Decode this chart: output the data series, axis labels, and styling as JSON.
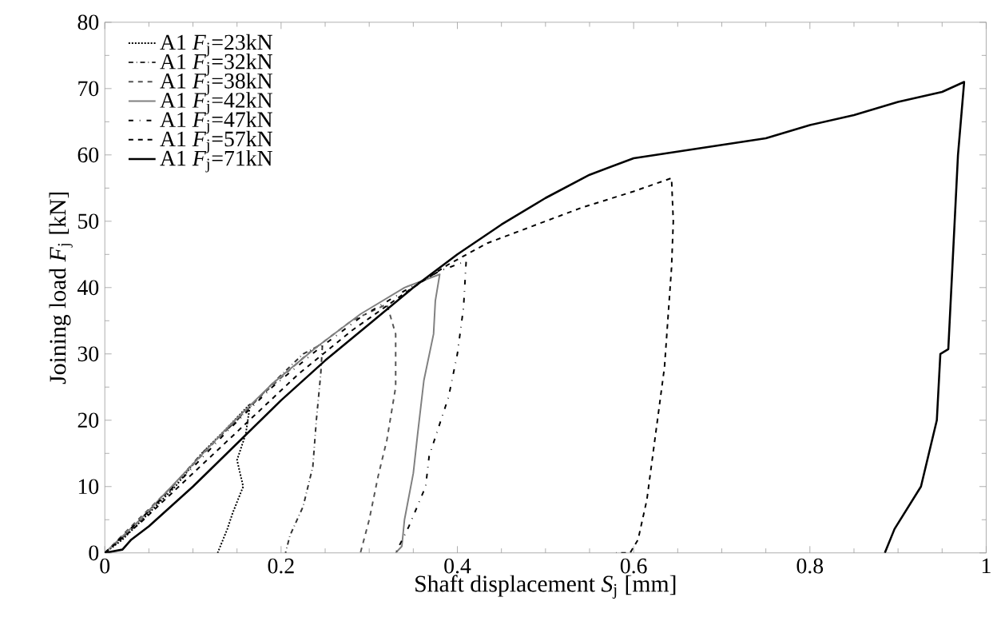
{
  "chart_data": {
    "type": "line",
    "xlabel": "Shaft displacement *S*$_{j}$ [mm]",
    "ylabel": "Joining load *F*$_{j}$ [kN]",
    "xlim": [
      0,
      1
    ],
    "ylim": [
      0,
      80
    ],
    "xticks": [
      0,
      0.2,
      0.4,
      0.6,
      0.8,
      1
    ],
    "yticks": [
      0,
      10,
      20,
      30,
      40,
      50,
      60,
      70,
      80
    ],
    "grid": false,
    "legend": "top left",
    "marker": "none",
    "series": [
      {
        "name": "A1 *F*$_{j}$=23kN",
        "color": "#000000",
        "line_style": "dotted",
        "x": [
          0,
          0.02,
          0.05,
          0.08,
          0.11,
          0.14,
          0.165,
          0.16,
          0.15,
          0.157,
          0.145,
          0.139,
          0.128
        ],
        "values": [
          0,
          2,
          6,
          10,
          15,
          19,
          22.5,
          18,
          14,
          10,
          6,
          3.6,
          0
        ]
      },
      {
        "name": "A1 *F*$_{j}$=32kN",
        "color": "#333333",
        "line_style": "dashdotted",
        "x": [
          0,
          0.03,
          0.07,
          0.11,
          0.15,
          0.19,
          0.225,
          0.247,
          0.245,
          0.24,
          0.236,
          0.225,
          0.21,
          0.205
        ],
        "values": [
          0,
          3.5,
          9,
          15,
          20,
          25.5,
          30,
          31.5,
          27,
          20,
          13,
          7,
          2.6,
          0
        ]
      },
      {
        "name": "A1 *F*$_{j}$=38kN",
        "color": "#555555",
        "line_style": "dashed",
        "x": [
          0,
          0.03,
          0.08,
          0.13,
          0.18,
          0.23,
          0.28,
          0.32,
          0.33,
          0.33,
          0.32,
          0.31,
          0.3,
          0.29
        ],
        "values": [
          0,
          4,
          10.5,
          17.5,
          24,
          30,
          35,
          37.5,
          33,
          25,
          17,
          11.5,
          5,
          0
        ]
      },
      {
        "name": "A1 *F*$_{j}$=42kN",
        "color": "#808080",
        "line_style": "solid",
        "x": [
          0,
          0.04,
          0.09,
          0.14,
          0.19,
          0.24,
          0.29,
          0.34,
          0.38,
          0.375,
          0.373,
          0.362,
          0.355,
          0.35,
          0.34,
          0.337,
          0.33
        ],
        "values": [
          0,
          5,
          12,
          19,
          25.5,
          31,
          36,
          40,
          42,
          38,
          33,
          26,
          18,
          12,
          5,
          1,
          0
        ]
      },
      {
        "name": "A1 *F*$_{j}$=47kN",
        "color": "#000000",
        "line_style": "loosely dashdotted",
        "x": [
          0,
          0.04,
          0.09,
          0.14,
          0.19,
          0.24,
          0.29,
          0.34,
          0.38,
          0.41,
          0.407,
          0.4,
          0.39,
          0.368,
          0.364,
          0.345,
          0.33
        ],
        "values": [
          0,
          5,
          11.5,
          18.5,
          25,
          30.5,
          35.5,
          39.5,
          42.5,
          44,
          37,
          30,
          23.5,
          14.6,
          10,
          4,
          0
        ]
      },
      {
        "name": "A1 *F*$_{j}$=57kN",
        "color": "#000000",
        "line_style": "dashed",
        "x": [
          0,
          0.04,
          0.1,
          0.16,
          0.22,
          0.28,
          0.344,
          0.39,
          0.434,
          0.49,
          0.54,
          0.6,
          0.643,
          0.645,
          0.643,
          0.635,
          0.625,
          0.615,
          0.605,
          0.596,
          0.58
        ],
        "values": [
          0,
          4.5,
          12,
          19.5,
          27,
          33.5,
          39.5,
          43.5,
          46.7,
          49.5,
          52,
          54.5,
          56.5,
          50,
          43,
          28,
          18,
          8,
          2,
          0,
          0
        ]
      },
      {
        "name": "A1 *F*$_{j}$=71kN",
        "color": "#000000",
        "line_style": "solid",
        "x": [
          0,
          0.02,
          0.03,
          0.05,
          0.1,
          0.15,
          0.2,
          0.25,
          0.3,
          0.35,
          0.4,
          0.45,
          0.5,
          0.55,
          0.6,
          0.65,
          0.7,
          0.75,
          0.8,
          0.85,
          0.9,
          0.95,
          0.975,
          0.968,
          0.962,
          0.957,
          0.948,
          0.944,
          0.926,
          0.896,
          0.885
        ],
        "values": [
          0,
          0.5,
          2,
          4,
          10,
          16.5,
          23,
          29,
          34.5,
          40,
          45,
          49.5,
          53.5,
          57,
          59.5,
          60.5,
          61.5,
          62.5,
          64.5,
          66,
          68,
          69.5,
          71,
          60,
          44,
          30.7,
          30,
          20,
          10,
          3.6,
          0
        ]
      }
    ]
  }
}
